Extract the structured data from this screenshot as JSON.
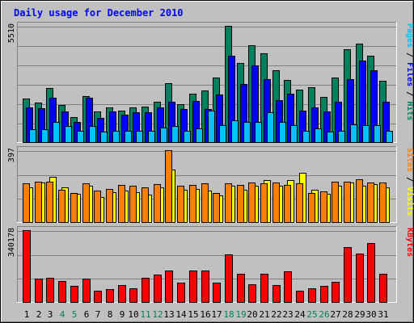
{
  "chart_data": {
    "type": "bar",
    "title": "Daily usage for December 2010",
    "categories": [
      "1",
      "2",
      "3",
      "4",
      "5",
      "6",
      "7",
      "8",
      "9",
      "10",
      "11",
      "12",
      "13",
      "14",
      "15",
      "16",
      "17",
      "18",
      "19",
      "20",
      "21",
      "22",
      "23",
      "24",
      "25",
      "26",
      "27",
      "28",
      "29",
      "30",
      "31"
    ],
    "weekend_days": [
      "4",
      "5",
      "11",
      "12",
      "18",
      "19",
      "25",
      "26"
    ],
    "colors": {
      "hits": "#00805c",
      "files": "#0000ff",
      "pages": "#00c0ff",
      "visits": "#ffff00",
      "sites": "#ff8000",
      "kbytes": "#ff0000",
      "background": "#c0c0c0",
      "grid": "#808080",
      "title": "#0000ff",
      "weekday_label": "#000000",
      "weekend_label": "#00805c"
    },
    "panels": [
      {
        "ylabel_parts": [
          {
            "text": "Pages",
            "color": "#00c0ff"
          },
          {
            "text": " / ",
            "color": "#000000"
          },
          {
            "text": "Files",
            "color": "#0000ff"
          },
          {
            "text": " / ",
            "color": "#000000"
          },
          {
            "text": "Hits",
            "color": "#00805c"
          }
        ],
        "ymax_label": "5510",
        "ymax": 5510,
        "series": [
          {
            "name": "Hits",
            "color": "#00805c",
            "values": [
              2050,
              1880,
              2550,
              1750,
              1200,
              2200,
              1450,
              1650,
              1500,
              1650,
              1700,
              1900,
              2800,
              1800,
              2300,
              2450,
              3050,
              5510,
              3750,
              4600,
              4200,
              3400,
              2950,
              2500,
              2600,
              2150,
              3050,
              4400,
              4650,
              4100,
              2900
            ]
          },
          {
            "name": "Files",
            "color": "#0000ff",
            "values": [
              1650,
              1600,
              2100,
              1450,
              950,
              2100,
              1150,
              1450,
              1300,
              1400,
              1400,
              1650,
              1900,
              1550,
              1950,
              1550,
              2250,
              4100,
              2750,
              3650,
              3000,
              2000,
              2300,
              1500,
              1650,
              1450,
              1900,
              3000,
              3850,
              3400,
              1900
            ]
          },
          {
            "name": "Pages",
            "color": "#00c0ff",
            "values": [
              600,
              600,
              950,
              750,
              550,
              750,
              500,
              550,
              550,
              550,
              550,
              700,
              750,
              550,
              650,
              1500,
              800,
              1050,
              950,
              950,
              1400,
              950,
              800,
              550,
              650,
              500,
              550,
              850,
              800,
              800,
              550
            ]
          }
        ]
      },
      {
        "ylabel_parts": [
          {
            "text": "Sites",
            "color": "#ff8000"
          },
          {
            "text": " / ",
            "color": "#000000"
          },
          {
            "text": "Visits",
            "color": "#ffff00"
          }
        ],
        "ymax_label": "397",
        "ymax": 397,
        "series": [
          {
            "name": "Visits",
            "color": "#ffff00",
            "values": [
              190,
              220,
              250,
              190,
              155,
              200,
              140,
              165,
              175,
              165,
              150,
              190,
              290,
              180,
              185,
              175,
              145,
              200,
              180,
              200,
              230,
              200,
              230,
              270,
              180,
              155,
              200,
              220,
              200,
              210,
              190
            ]
          },
          {
            "name": "Sites",
            "color": "#ff8000",
            "values": [
              215,
              225,
              225,
              180,
              160,
              215,
              175,
              185,
              205,
              200,
              190,
              210,
              397,
              200,
              205,
              215,
              160,
              215,
              205,
              220,
              215,
              220,
              205,
              215,
              160,
              170,
              225,
              225,
              235,
              220,
              220
            ]
          }
        ]
      },
      {
        "ylabel_parts": [
          {
            "text": "KBytes",
            "color": "#ff0000"
          }
        ],
        "ymax_label": "340178",
        "ymax": 340178,
        "series": [
          {
            "name": "KBytes",
            "color": "#ff0000",
            "values": [
              340178,
              110000,
              115000,
              100000,
              75000,
              110000,
              55000,
              60000,
              80000,
              65000,
              115000,
              130000,
              150000,
              90000,
              150000,
              150000,
              90000,
              225000,
              135000,
              85000,
              135000,
              80000,
              145000,
              55000,
              65000,
              75000,
              95000,
              260000,
              230000,
              280000,
              135000
            ]
          }
        ]
      }
    ]
  }
}
